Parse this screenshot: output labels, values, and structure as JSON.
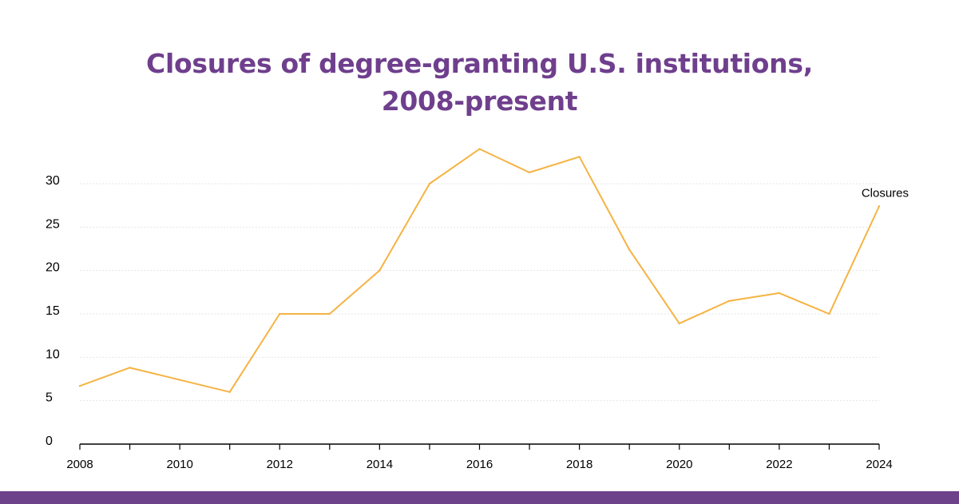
{
  "chart_data": {
    "type": "line",
    "title_lines": [
      "Closures of degree-granting U.S. institutions,",
      "2008-present"
    ],
    "x": [
      2008,
      2009,
      2010,
      2011,
      2012,
      2013,
      2014,
      2015,
      2016,
      2017,
      2018,
      2019,
      2020,
      2021,
      2022,
      2023,
      2024
    ],
    "series": [
      {
        "name": "Closures",
        "values": [
          6.7,
          8.8,
          7.4,
          6.0,
          15.0,
          15.0,
          20.0,
          30.0,
          34.0,
          31.3,
          33.1,
          22.4,
          13.9,
          16.5,
          17.4,
          15.0,
          27.4
        ]
      }
    ],
    "y_ticks": [
      "0",
      "5",
      "10",
      "15",
      "20",
      "25",
      "30"
    ],
    "x_tick_labels": [
      "2008",
      "2010",
      "2012",
      "2014",
      "2016",
      "2018",
      "2020",
      "2022",
      "2024"
    ],
    "xlabel": "",
    "ylabel": "",
    "xlim": [
      2008,
      2024
    ],
    "ylim": [
      0,
      30
    ],
    "grid": true,
    "line_color": "#f5b342",
    "title_color": "#6f3f8d",
    "bar_color": "#6e418b"
  }
}
